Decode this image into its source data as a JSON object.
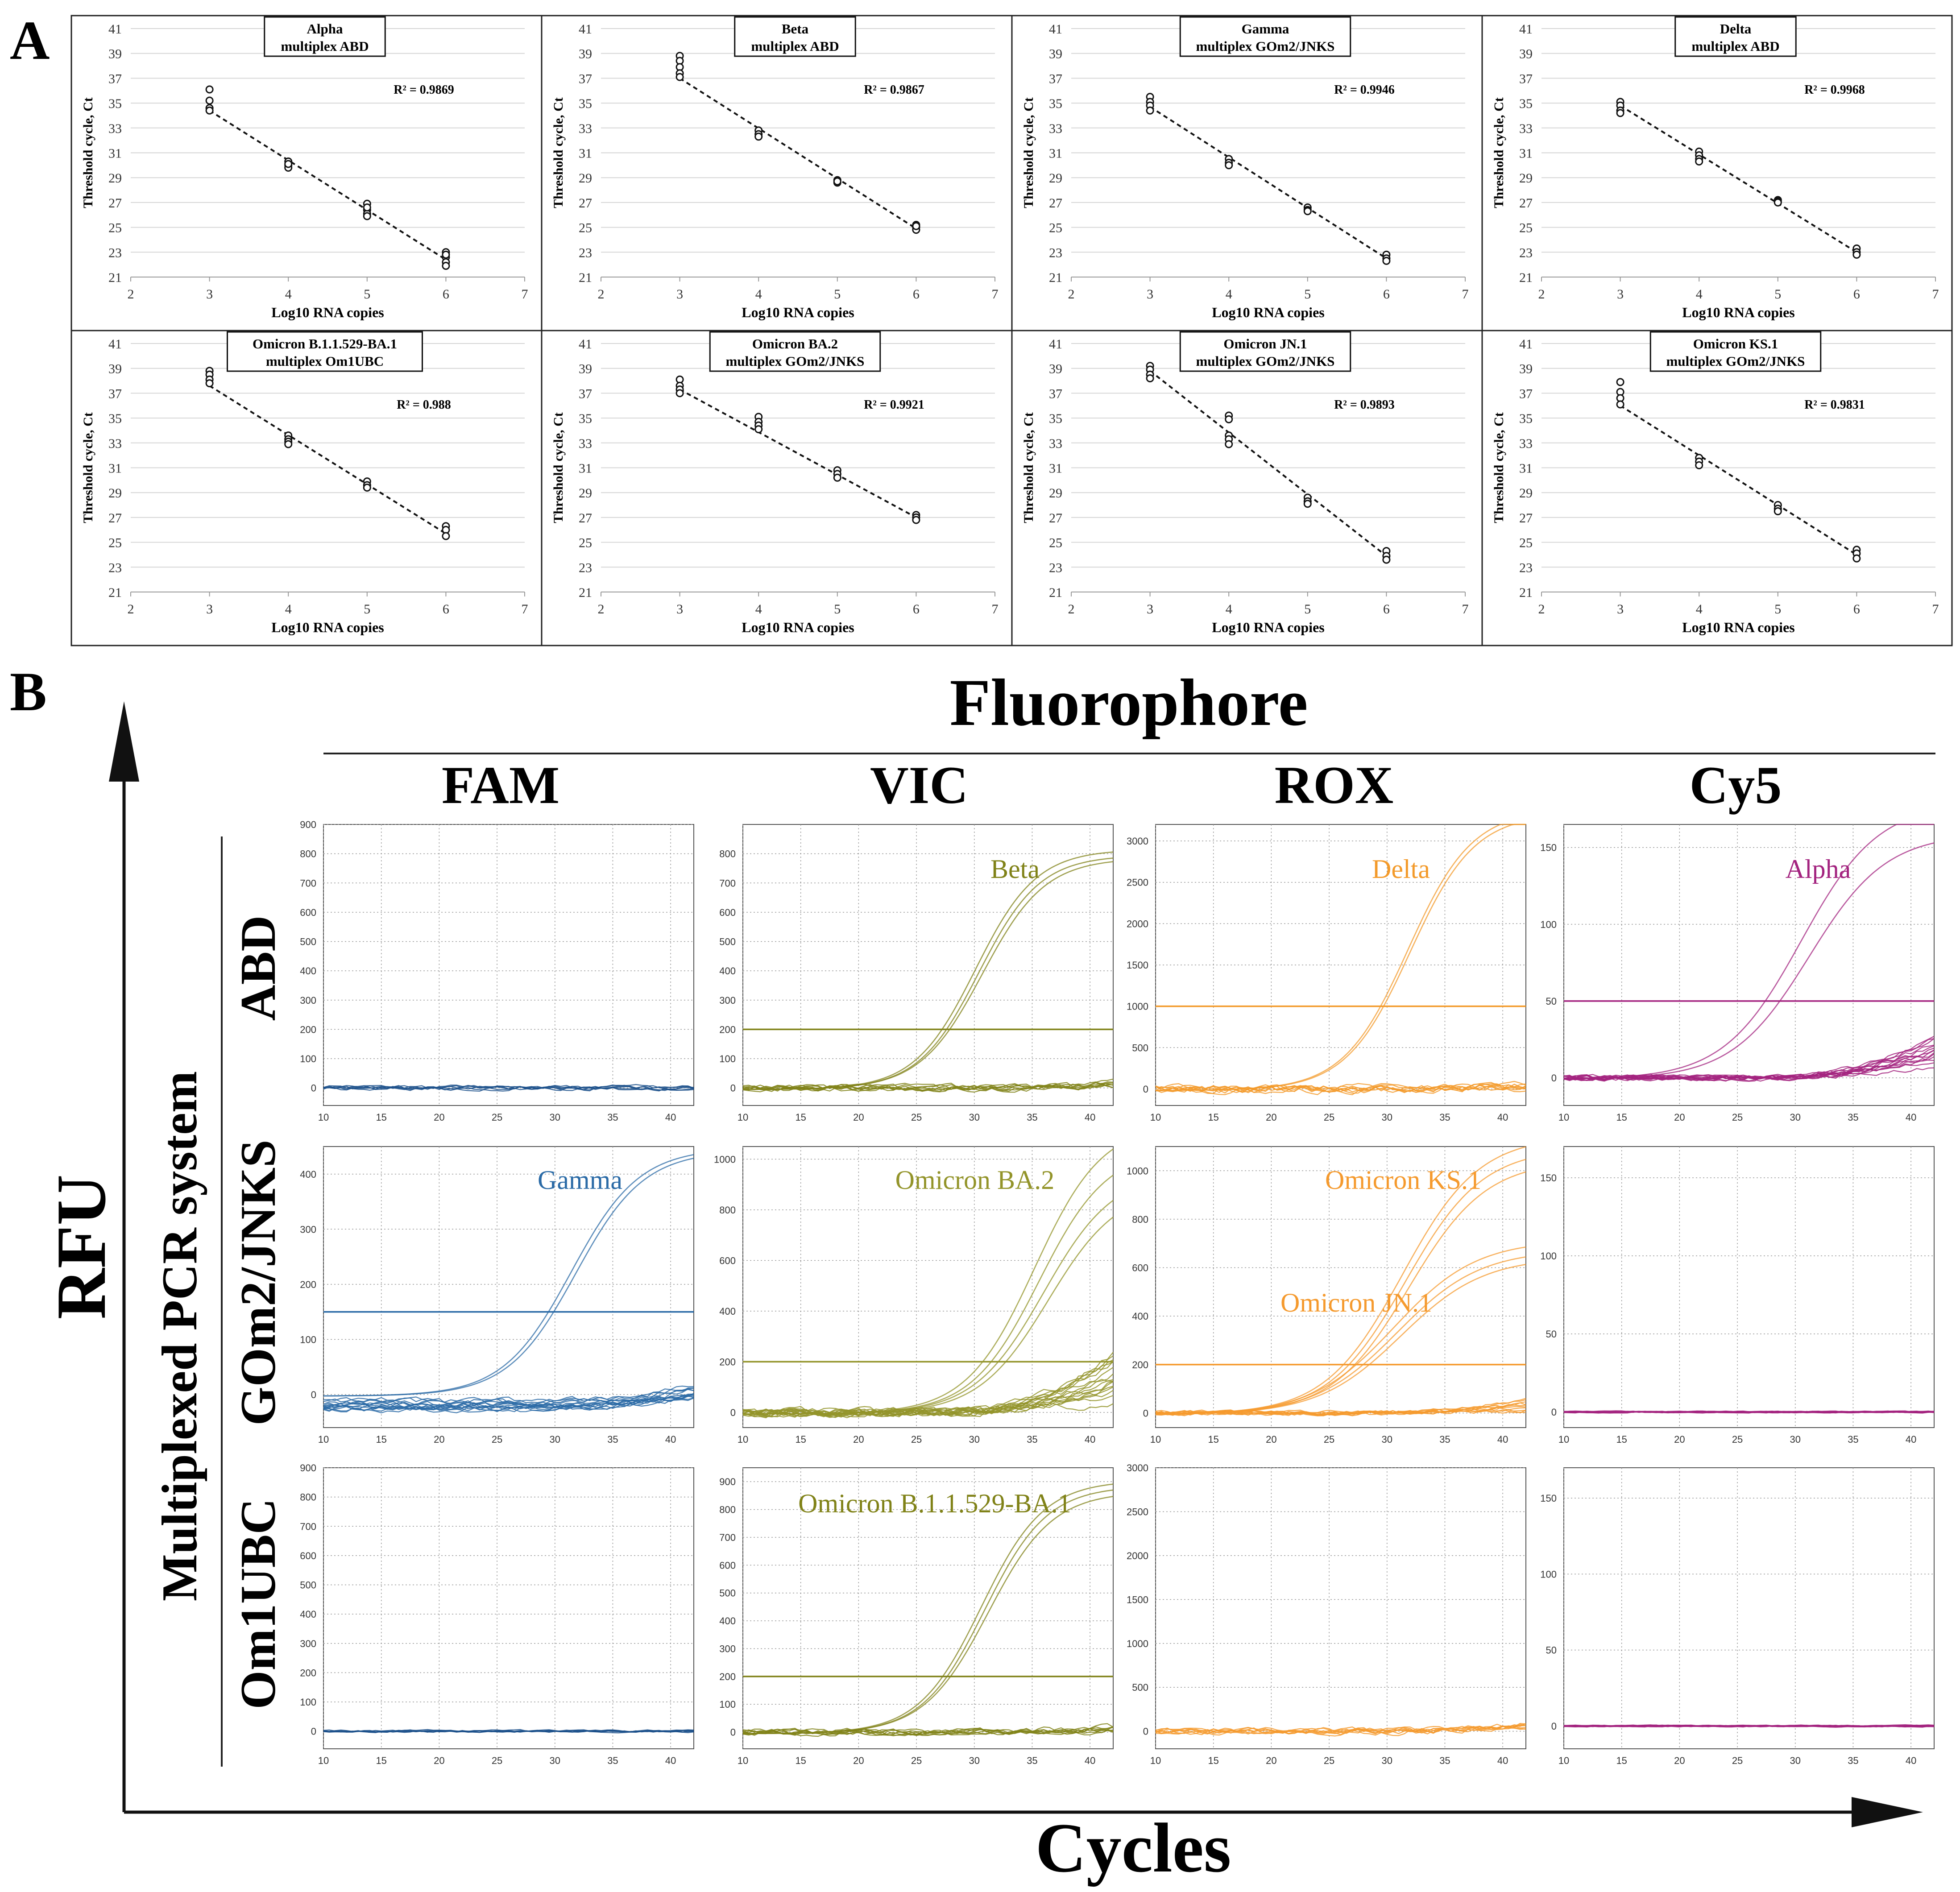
{
  "panel_a": {
    "letter": "A",
    "xlabel": "Log10 RNA copies",
    "ylabel": "Threshold cycle, Ct",
    "x_ticks": [
      "2",
      "3",
      "4",
      "5",
      "6",
      "7"
    ],
    "y_ticks": [
      "21",
      "23",
      "25",
      "27",
      "29",
      "31",
      "33",
      "35",
      "37",
      "39",
      "41"
    ]
  },
  "panel_b": {
    "letter": "B",
    "fluorophore_title": "Fluorophore",
    "channels": [
      "FAM",
      "VIC",
      "ROX",
      "Cy5"
    ],
    "system_title": "Multiplexed PCR system",
    "systems": [
      "ABD",
      "GOm2/JNKS",
      "Om1UBC"
    ],
    "y_axis_title": "RFU",
    "x_axis_title": "Cycles",
    "x_ticks": [
      "10",
      "15",
      "20",
      "25",
      "30",
      "35",
      "40"
    ]
  },
  "chart_data": [
    {
      "type": "scatter",
      "id": "alpha",
      "title": "Alpha",
      "subtitle": "multiplex ABD",
      "r2": "R² = 0.9869",
      "xlim": [
        2,
        7
      ],
      "ylim": [
        21,
        41
      ],
      "fit": [
        [
          3,
          34.4
        ],
        [
          6,
          22.4
        ]
      ],
      "points": [
        [
          3,
          36.1
        ],
        [
          3,
          35.2
        ],
        [
          3,
          34.6
        ],
        [
          3,
          34.4
        ],
        [
          4,
          30.3
        ],
        [
          4,
          30.0
        ],
        [
          4,
          29.8
        ],
        [
          4,
          30.1
        ],
        [
          5,
          26.9
        ],
        [
          5,
          26.4
        ],
        [
          5,
          26.1
        ],
        [
          5,
          25.9
        ],
        [
          5,
          26.6
        ],
        [
          6,
          23.0
        ],
        [
          6,
          22.6
        ],
        [
          6,
          22.2
        ],
        [
          6,
          21.9
        ],
        [
          6,
          22.8
        ]
      ]
    },
    {
      "type": "scatter",
      "id": "beta",
      "title": "Beta",
      "subtitle": "multiplex ABD",
      "r2": "R² = 0.9867",
      "xlim": [
        2,
        7
      ],
      "ylim": [
        21,
        41
      ],
      "fit": [
        [
          3,
          37.0
        ],
        [
          6,
          24.9
        ]
      ],
      "points": [
        [
          3,
          38.8
        ],
        [
          3,
          38.4
        ],
        [
          3,
          37.9
        ],
        [
          3,
          37.4
        ],
        [
          3,
          37.1
        ],
        [
          4,
          32.8
        ],
        [
          4,
          32.5
        ],
        [
          4,
          32.3
        ],
        [
          5,
          28.8
        ],
        [
          5,
          28.6
        ],
        [
          5,
          28.7
        ],
        [
          6,
          25.2
        ],
        [
          6,
          25.0
        ],
        [
          6,
          24.8
        ],
        [
          6,
          25.1
        ]
      ]
    },
    {
      "type": "scatter",
      "id": "gamma",
      "title": "Gamma",
      "subtitle": "multiplex GOm2/JNKS",
      "r2": "R² = 0.9946",
      "xlim": [
        2,
        7
      ],
      "ylim": [
        21,
        41
      ],
      "fit": [
        [
          3,
          34.7
        ],
        [
          6,
          22.5
        ]
      ],
      "points": [
        [
          3,
          35.5
        ],
        [
          3,
          35.1
        ],
        [
          3,
          34.8
        ],
        [
          3,
          34.4
        ],
        [
          4,
          30.5
        ],
        [
          4,
          30.2
        ],
        [
          4,
          30.0
        ],
        [
          5,
          26.6
        ],
        [
          5,
          26.4
        ],
        [
          5,
          26.3
        ],
        [
          6,
          22.8
        ],
        [
          6,
          22.5
        ],
        [
          6,
          22.3
        ]
      ]
    },
    {
      "type": "scatter",
      "id": "delta",
      "title": "Delta",
      "subtitle": "multiplex ABD",
      "r2": "R² = 0.9968",
      "xlim": [
        2,
        7
      ],
      "ylim": [
        21,
        41
      ],
      "fit": [
        [
          3,
          34.8
        ],
        [
          6,
          23.0
        ]
      ],
      "points": [
        [
          3,
          35.1
        ],
        [
          3,
          34.8
        ],
        [
          3,
          34.4
        ],
        [
          3,
          34.2
        ],
        [
          4,
          31.1
        ],
        [
          4,
          30.8
        ],
        [
          4,
          30.5
        ],
        [
          4,
          30.3
        ],
        [
          5,
          27.2
        ],
        [
          5,
          27.1
        ],
        [
          5,
          27.0
        ],
        [
          6,
          23.3
        ],
        [
          6,
          23.0
        ],
        [
          6,
          22.8
        ]
      ]
    },
    {
      "type": "scatter",
      "id": "ba1",
      "title": "Omicron B.1.1.529-BA.1",
      "subtitle": "multiplex Om1UBC",
      "r2": "R² = 0.988",
      "xlim": [
        2,
        7
      ],
      "ylim": [
        21,
        41
      ],
      "fit": [
        [
          3,
          37.6
        ],
        [
          6,
          25.7
        ]
      ],
      "points": [
        [
          3,
          38.8
        ],
        [
          3,
          38.5
        ],
        [
          3,
          38.1
        ],
        [
          3,
          37.8
        ],
        [
          4,
          33.6
        ],
        [
          4,
          33.3
        ],
        [
          4,
          33.1
        ],
        [
          4,
          32.9
        ],
        [
          5,
          29.9
        ],
        [
          5,
          29.6
        ],
        [
          5,
          29.4
        ],
        [
          6,
          26.3
        ],
        [
          6,
          26.0
        ],
        [
          6,
          25.5
        ]
      ]
    },
    {
      "type": "scatter",
      "id": "ba2",
      "title": "Omicron BA.2",
      "subtitle": "multiplex GOm2/JNKS",
      "r2": "R² = 0.9921",
      "xlim": [
        2,
        7
      ],
      "ylim": [
        21,
        41
      ],
      "fit": [
        [
          3,
          37.3
        ],
        [
          6,
          27.0
        ]
      ],
      "points": [
        [
          3,
          38.1
        ],
        [
          3,
          37.6
        ],
        [
          3,
          37.3
        ],
        [
          3,
          37.0
        ],
        [
          4,
          35.1
        ],
        [
          4,
          34.7
        ],
        [
          4,
          34.4
        ],
        [
          4,
          34.1
        ],
        [
          5,
          30.8
        ],
        [
          5,
          30.5
        ],
        [
          5,
          30.2
        ],
        [
          6,
          27.2
        ],
        [
          6,
          27.0
        ],
        [
          6,
          26.8
        ]
      ]
    },
    {
      "type": "scatter",
      "id": "jn1",
      "title": "Omicron JN.1",
      "subtitle": "multiplex GOm2/JNKS",
      "r2": "R² = 0.9893",
      "xlim": [
        2,
        7
      ],
      "ylim": [
        21,
        41
      ],
      "fit": [
        [
          3,
          38.8
        ],
        [
          6,
          23.9
        ]
      ],
      "points": [
        [
          3,
          39.2
        ],
        [
          3,
          38.9
        ],
        [
          3,
          38.5
        ],
        [
          3,
          38.2
        ],
        [
          4,
          35.2
        ],
        [
          4,
          34.9
        ],
        [
          4,
          33.6
        ],
        [
          4,
          33.3
        ],
        [
          4,
          32.9
        ],
        [
          5,
          28.6
        ],
        [
          5,
          28.3
        ],
        [
          5,
          28.1
        ],
        [
          6,
          24.3
        ],
        [
          6,
          23.9
        ],
        [
          6,
          23.6
        ]
      ]
    },
    {
      "type": "scatter",
      "id": "ks1",
      "title": "Omicron KS.1",
      "subtitle": "multiplex GOm2/JNKS",
      "r2": "R² = 0.9831",
      "xlim": [
        2,
        7
      ],
      "ylim": [
        21,
        41
      ],
      "fit": [
        [
          3,
          36.0
        ],
        [
          6,
          24.0
        ]
      ],
      "points": [
        [
          3,
          37.9
        ],
        [
          3,
          37.1
        ],
        [
          3,
          36.6
        ],
        [
          3,
          36.1
        ],
        [
          4,
          31.8
        ],
        [
          4,
          31.5
        ],
        [
          4,
          31.2
        ],
        [
          5,
          28.0
        ],
        [
          5,
          27.7
        ],
        [
          5,
          27.5
        ],
        [
          6,
          24.4
        ],
        [
          6,
          24.1
        ],
        [
          6,
          23.7
        ]
      ]
    },
    {
      "type": "line",
      "id": "abd-fam",
      "color": "#1a4f8a",
      "xlim": [
        10,
        42
      ],
      "ylim": [
        -60,
        900
      ],
      "y_ticks": [
        "0",
        "100",
        "200",
        "300",
        "400",
        "500",
        "600",
        "700",
        "800",
        "900"
      ],
      "threshold": null,
      "label": "",
      "curves": [],
      "baseline_count": 6,
      "noise": 6
    },
    {
      "type": "line",
      "id": "abd-vic",
      "color": "#808218",
      "xlim": [
        10,
        42
      ],
      "ylim": [
        -60,
        900
      ],
      "y_ticks": [
        "0",
        "100",
        "200",
        "300",
        "400",
        "500",
        "600",
        "700",
        "800"
      ],
      "threshold": 200,
      "label": "Beta",
      "curves": [
        {
          "top": 820,
          "mid": 30.1,
          "k": 0.38
        },
        {
          "top": 800,
          "mid": 30.4,
          "k": 0.38
        },
        {
          "top": 790,
          "mid": 30.7,
          "k": 0.37
        }
      ],
      "baseline_count": 8,
      "noise": 8,
      "drift": 18
    },
    {
      "type": "line",
      "id": "abd-rox",
      "color": "#f39a2a",
      "xlim": [
        10,
        42
      ],
      "ylim": [
        -200,
        3200
      ],
      "y_ticks": [
        "0",
        "500",
        "1000",
        "1500",
        "2000",
        "2500",
        "3000"
      ],
      "threshold": 1000,
      "label": "Delta",
      "curves": [
        {
          "top": 3400,
          "mid": 31.8,
          "k": 0.36
        },
        {
          "top": 3350,
          "mid": 32.0,
          "k": 0.36
        }
      ],
      "baseline_count": 8,
      "noise": 10,
      "drift": 60
    },
    {
      "type": "line",
      "id": "abd-cy5",
      "color": "#a3237f",
      "xlim": [
        10,
        42
      ],
      "ylim": [
        -18,
        165
      ],
      "y_ticks": [
        "0",
        "50",
        "100",
        "150"
      ],
      "threshold": 50,
      "label": "Alpha",
      "curves": [
        {
          "top": 180,
          "mid": 30.5,
          "k": 0.3
        },
        {
          "top": 160,
          "mid": 31.2,
          "k": 0.3
        }
      ],
      "baseline_count": 14,
      "noise": 7,
      "drift": 25
    },
    {
      "type": "line",
      "id": "gom-fam",
      "color": "#2a6aa6",
      "xlim": [
        10,
        42
      ],
      "ylim": [
        -60,
        450
      ],
      "y_ticks": [
        "0",
        "100",
        "200",
        "300",
        "400"
      ],
      "threshold": 150,
      "label": "Gamma",
      "curves": [
        {
          "top": 450,
          "mid": 31.4,
          "k": 0.34
        },
        {
          "top": 445,
          "mid": 31.8,
          "k": 0.34
        }
      ],
      "baseline_count": 14,
      "noise": 8,
      "drift": 45,
      "offset": -20
    },
    {
      "type": "line",
      "id": "gom-vic",
      "color": "#93942a",
      "xlim": [
        10,
        42
      ],
      "ylim": [
        -60,
        1050
      ],
      "y_ticks": [
        "0",
        "200",
        "400",
        "600",
        "800",
        "1000"
      ],
      "threshold": 200,
      "label": "Omicron BA.2",
      "curves": [
        {
          "top": 1150,
          "mid": 35.2,
          "k": 0.34
        },
        {
          "top": 1050,
          "mid": 35.6,
          "k": 0.34
        },
        {
          "top": 960,
          "mid": 36.0,
          "k": 0.33
        },
        {
          "top": 900,
          "mid": 36.4,
          "k": 0.33
        }
      ],
      "baseline_count": 16,
      "noise": 10,
      "drift": 200
    },
    {
      "type": "line",
      "id": "gom-rox",
      "color": "#f59a2e",
      "xlim": [
        10,
        42
      ],
      "ylim": [
        -60,
        1100
      ],
      "y_ticks": [
        "0",
        "200",
        "400",
        "600",
        "800",
        "1000"
      ],
      "threshold": 200,
      "label": "Omicron KS.1",
      "label2": "Omicron JN.1",
      "curves": [
        {
          "top": 1150,
          "mid": 31.3,
          "k": 0.3
        },
        {
          "top": 1100,
          "mid": 31.6,
          "k": 0.3
        },
        {
          "top": 1050,
          "mid": 31.9,
          "k": 0.3
        },
        {
          "top": 720,
          "mid": 30.6,
          "k": 0.28
        },
        {
          "top": 680,
          "mid": 30.9,
          "k": 0.28
        },
        {
          "top": 650,
          "mid": 31.2,
          "k": 0.28
        }
      ],
      "baseline_count": 10,
      "noise": 6,
      "drift": 50
    },
    {
      "type": "line",
      "id": "gom-cy5",
      "color": "#a3237f",
      "xlim": [
        10,
        42
      ],
      "ylim": [
        -10,
        170
      ],
      "y_ticks": [
        "0",
        "50",
        "100",
        "150"
      ],
      "threshold": null,
      "label": "",
      "curves": [],
      "baseline_count": 14,
      "noise": 2
    },
    {
      "type": "line",
      "id": "om1-fam",
      "color": "#1a4f8a",
      "xlim": [
        10,
        42
      ],
      "ylim": [
        -60,
        900
      ],
      "y_ticks": [
        "0",
        "100",
        "200",
        "300",
        "400",
        "500",
        "600",
        "700",
        "800",
        "900"
      ],
      "threshold": null,
      "label": "",
      "curves": [],
      "baseline_count": 6,
      "noise": 3
    },
    {
      "type": "line",
      "id": "om1-vic",
      "color": "#808218",
      "xlim": [
        10,
        42
      ],
      "ylim": [
        -60,
        950
      ],
      "y_ticks": [
        "0",
        "100",
        "200",
        "300",
        "400",
        "500",
        "600",
        "700",
        "800",
        "900"
      ],
      "threshold": 200,
      "label": "Omicron B.1.1.529-BA.1",
      "curves": [
        {
          "top": 910,
          "mid": 30.6,
          "k": 0.37
        },
        {
          "top": 890,
          "mid": 30.9,
          "k": 0.37
        },
        {
          "top": 870,
          "mid": 31.2,
          "k": 0.36
        }
      ],
      "baseline_count": 8,
      "noise": 8,
      "drift": 20
    },
    {
      "type": "line",
      "id": "om1-rox",
      "color": "#f59a2e",
      "xlim": [
        10,
        42
      ],
      "ylim": [
        -200,
        3000
      ],
      "y_ticks": [
        "0",
        "500",
        "1000",
        "1500",
        "2000",
        "2500",
        "3000"
      ],
      "threshold": null,
      "label": "",
      "curves": [],
      "baseline_count": 8,
      "noise": 8,
      "drift": 60
    },
    {
      "type": "line",
      "id": "om1-cy5",
      "color": "#a3237f",
      "xlim": [
        10,
        42
      ],
      "ylim": [
        -15,
        170
      ],
      "y_ticks": [
        "0",
        "50",
        "100",
        "150"
      ],
      "threshold": null,
      "label": "",
      "curves": [],
      "baseline_count": 14,
      "noise": 2
    }
  ]
}
